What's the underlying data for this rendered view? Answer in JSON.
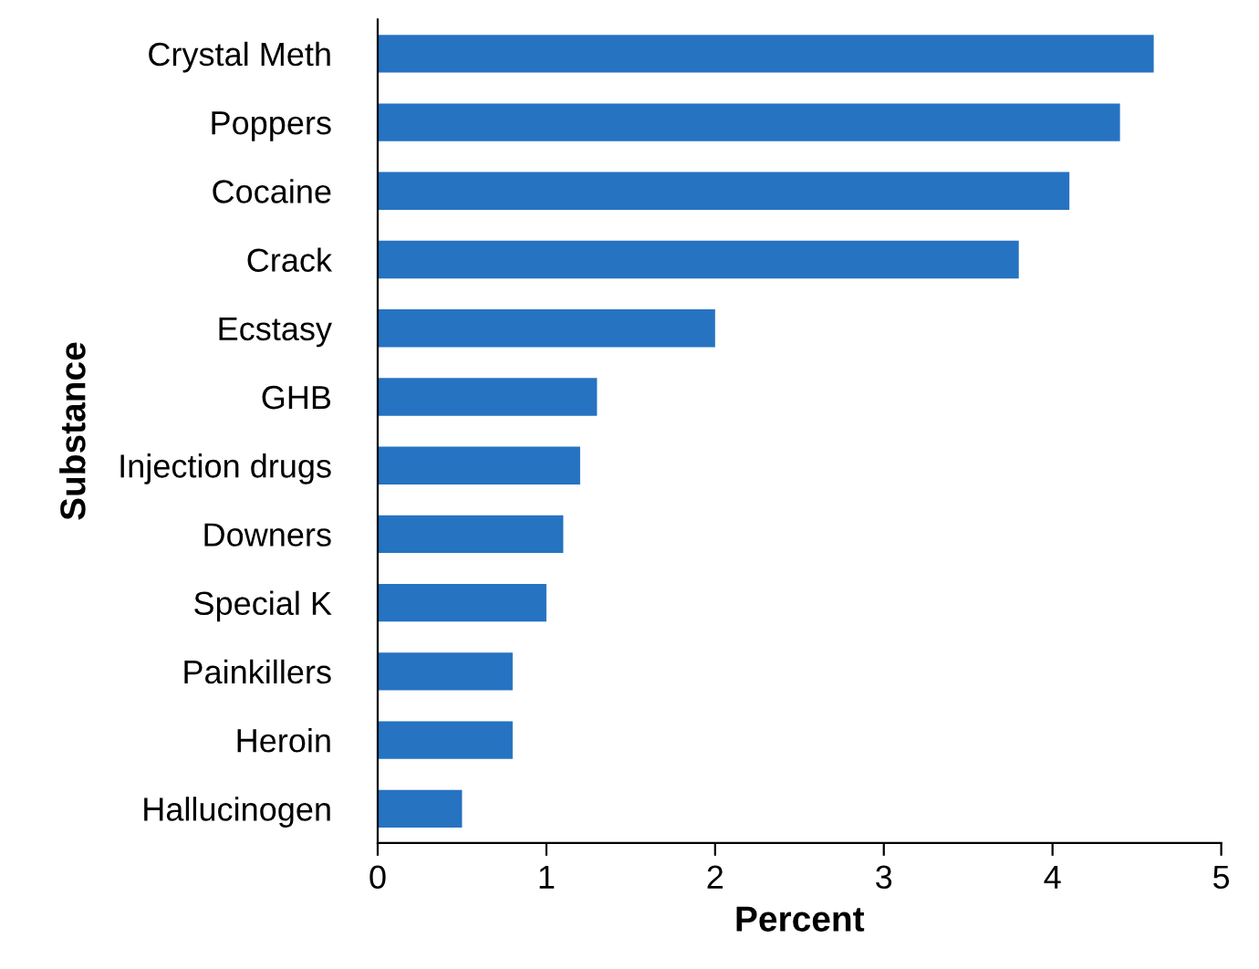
{
  "chart_data": {
    "type": "bar",
    "orientation": "horizontal",
    "categories": [
      "Crystal Meth",
      "Poppers",
      "Cocaine",
      "Crack",
      "Ecstasy",
      "GHB",
      "Injection drugs",
      "Downers",
      "Special K",
      "Painkillers",
      "Heroin",
      "Hallucinogen"
    ],
    "values": [
      4.6,
      4.4,
      4.1,
      3.8,
      2.0,
      1.3,
      1.2,
      1.1,
      1.0,
      0.8,
      0.8,
      0.5
    ],
    "color": "#2673c2",
    "xlabel": "Percent",
    "ylabel": "Substance",
    "xlim": [
      0,
      5
    ],
    "xticks": [
      0,
      1,
      2,
      3,
      4,
      5
    ],
    "grid": false,
    "legend": false
  }
}
